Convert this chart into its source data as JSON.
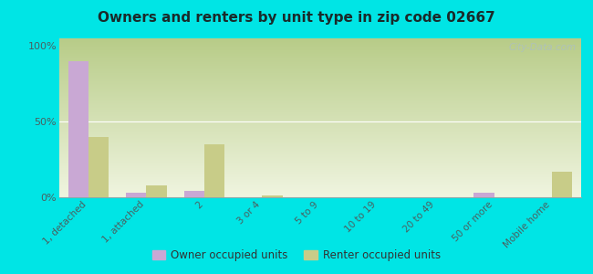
{
  "title": "Owners and renters by unit type in zip code 02667",
  "categories": [
    "1, detached",
    "1, attached",
    "2",
    "3 or 4",
    "5 to 9",
    "10 to 19",
    "20 to 49",
    "50 or more",
    "Mobile home"
  ],
  "owner_values": [
    90,
    3,
    4,
    0,
    0,
    0,
    0,
    3,
    0
  ],
  "renter_values": [
    40,
    8,
    35,
    1,
    0,
    0,
    0,
    0,
    17
  ],
  "owner_color": "#c9a8d4",
  "renter_color": "#c8cc88",
  "background_color": "#00e5e5",
  "grad_top": "#b8cc88",
  "grad_bottom": "#f0f5e0",
  "ylabel_ticks": [
    "0%",
    "50%",
    "100%"
  ],
  "ytick_vals": [
    0,
    50,
    100
  ],
  "ylim": [
    0,
    105
  ],
  "bar_width": 0.35,
  "watermark": "City-Data.com",
  "legend_owner": "Owner occupied units",
  "legend_renter": "Renter occupied units",
  "title_color": "#1a2a2a",
  "tick_color": "#4a6060"
}
